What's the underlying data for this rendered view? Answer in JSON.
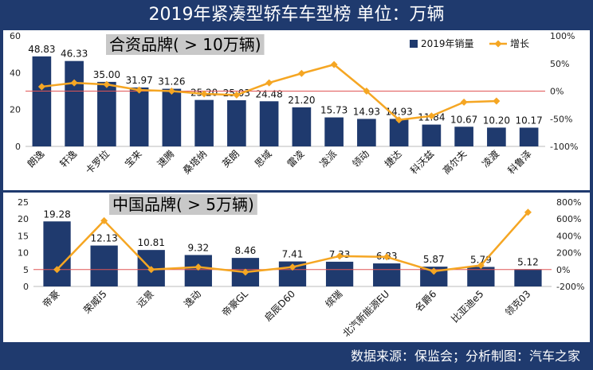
{
  "header": {
    "title": "2019年紧凑型轿车车型榜  单位：万辆"
  },
  "footer": {
    "source": "数据来源：保监会；分析制图：汽车之家"
  },
  "colors": {
    "bar": "#1f3a6e",
    "line": "#f5a623",
    "reference": "#e05555",
    "section_label_bg": "#c8c8c8"
  },
  "chart_data": [
    {
      "type": "bar",
      "section_label": "合资品牌( > 10万辆)",
      "categories": [
        "朗逸",
        "轩逸",
        "卡罗拉",
        "宝来",
        "速腾",
        "桑塔纳",
        "英朗",
        "思域",
        "雷凌",
        "凌派",
        "领动",
        "捷达",
        "科沃兹",
        "高尔夫",
        "凌渡",
        "科鲁泽"
      ],
      "series": [
        {
          "name": "2019年销量",
          "kind": "bar",
          "axis": "left",
          "values": [
            48.83,
            46.33,
            35.0,
            31.97,
            31.26,
            25.2,
            25.03,
            24.48,
            21.2,
            15.73,
            14.93,
            14.93,
            11.84,
            10.67,
            10.2,
            10.17
          ]
        },
        {
          "name": "增长",
          "kind": "line",
          "axis": "right",
          "values": [
            8,
            15,
            12,
            2,
            0,
            -5,
            -7,
            15,
            32,
            48,
            0,
            -52,
            -45,
            -20,
            -18,
            null
          ]
        }
      ],
      "value_labels": [
        "48.83",
        "46.33",
        "35.00",
        "31.97",
        "31.26",
        "25.20",
        "25.03",
        "24.48",
        "21.20",
        "15.73",
        "14.93",
        "14.93",
        "11.84",
        "10.67",
        "10.20",
        "10.17"
      ],
      "ylim_left": [
        0,
        60
      ],
      "yticks_left": [
        "0",
        "20",
        "40",
        "60"
      ],
      "ylim_right": [
        -100,
        100
      ],
      "yticks_right": [
        "-100%",
        "-50%",
        "0%",
        "50%",
        "100%"
      ],
      "legend": [
        "2019年销量",
        "增长"
      ]
    },
    {
      "type": "bar",
      "section_label": "中国品牌( > 5万辆)",
      "categories": [
        "帝豪",
        "荣威i5",
        "远景",
        "逸动",
        "帝豪GL",
        "启辰D60",
        "缤瑞",
        "北汽新能源EU",
        "名爵6",
        "比亚迪e5",
        "领克03"
      ],
      "series": [
        {
          "name": "2019年销量",
          "kind": "bar",
          "axis": "left",
          "values": [
            19.28,
            12.13,
            10.81,
            9.32,
            8.46,
            7.41,
            7.33,
            6.83,
            5.87,
            5.79,
            5.12
          ]
        },
        {
          "name": "增长",
          "kind": "line",
          "axis": "right",
          "values": [
            0,
            580,
            0,
            30,
            -30,
            30,
            160,
            150,
            -20,
            50,
            680
          ]
        }
      ],
      "value_labels": [
        "19.28",
        "12.13",
        "10.81",
        "9.32",
        "8.46",
        "7.41",
        "7.33",
        "6.83",
        "5.87",
        "5.79",
        "5.12"
      ],
      "ylim_left": [
        0,
        25
      ],
      "yticks_left": [
        "0",
        "5",
        "10",
        "15",
        "20",
        "25"
      ],
      "ylim_right": [
        -200,
        800
      ],
      "yticks_right": [
        "-200%",
        "0%",
        "200%",
        "400%",
        "600%",
        "800%"
      ]
    }
  ]
}
